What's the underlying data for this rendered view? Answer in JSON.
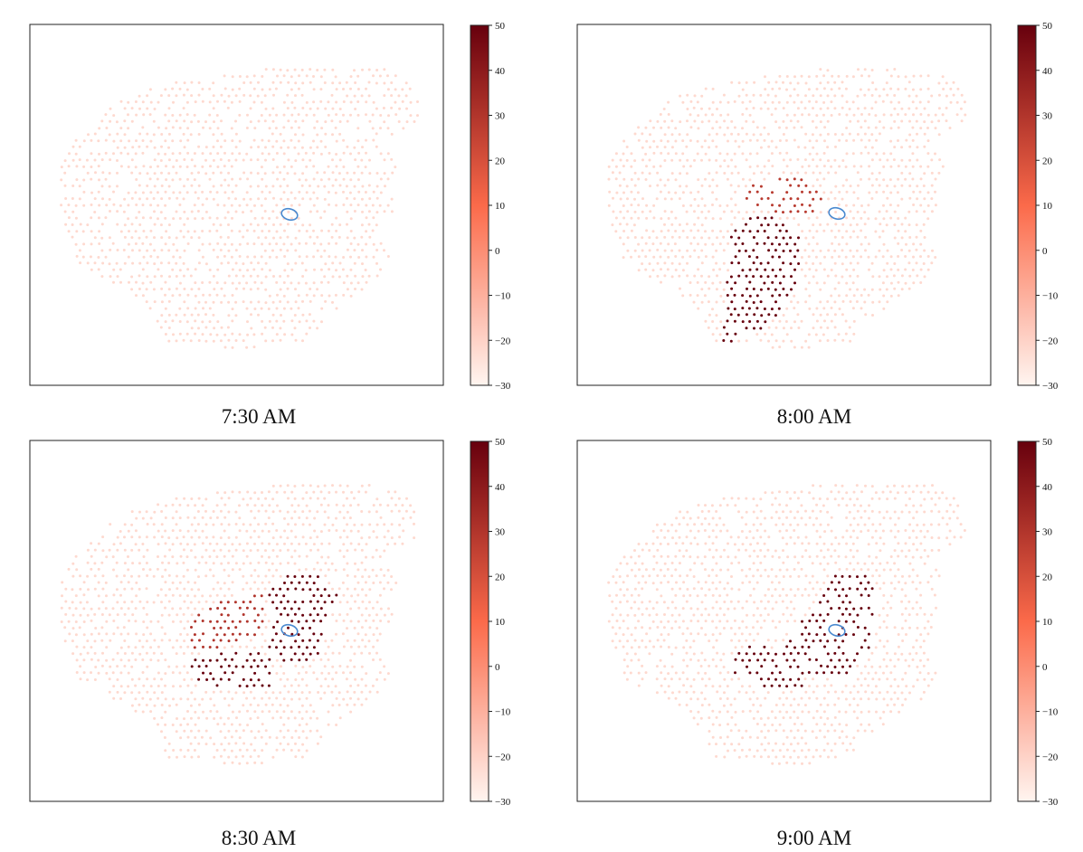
{
  "colors": {
    "scale_low": "#fff5f0",
    "scale_mid": "#fb6a4a",
    "scale_high": "#67000d",
    "marker": "#4a8ad0",
    "frame": "#222222"
  },
  "chart_data": [
    {
      "type": "scatter",
      "title": "7:30 AM",
      "colorbar": {
        "min": -30,
        "max": 50,
        "ticks": [
          50,
          40,
          30,
          20,
          10,
          0,
          -10,
          -20,
          -30
        ]
      },
      "background_value": -22,
      "hotspots": []
    },
    {
      "type": "scatter",
      "title": "8:00 AM",
      "colorbar": {
        "min": -30,
        "max": 50,
        "ticks": [
          50,
          40,
          30,
          20,
          10,
          0,
          -10,
          -20,
          -30
        ]
      },
      "background_value": -22,
      "hotspots": [
        {
          "label": "northern lobe",
          "value": 28
        },
        {
          "label": "southern tongue",
          "value": 50
        }
      ]
    },
    {
      "type": "scatter",
      "title": "8:30 AM",
      "colorbar": {
        "min": -30,
        "max": 50,
        "ticks": [
          50,
          40,
          30,
          20,
          10,
          0,
          -10,
          -20,
          -30
        ]
      },
      "background_value": -22,
      "hotspots": [
        {
          "label": "western lobe",
          "value": 30
        },
        {
          "label": "central core",
          "value": 50
        },
        {
          "label": "northeast lobe",
          "value": 50
        }
      ]
    },
    {
      "type": "scatter",
      "title": "9:00 AM",
      "colorbar": {
        "min": -30,
        "max": 50,
        "ticks": [
          50,
          40,
          30,
          20,
          10,
          0,
          -10,
          -20,
          -30
        ]
      },
      "background_value": -22,
      "hotspots": [
        {
          "label": "southwest lobe",
          "value": 50
        },
        {
          "label": "northeast arm",
          "value": 50
        }
      ]
    }
  ]
}
